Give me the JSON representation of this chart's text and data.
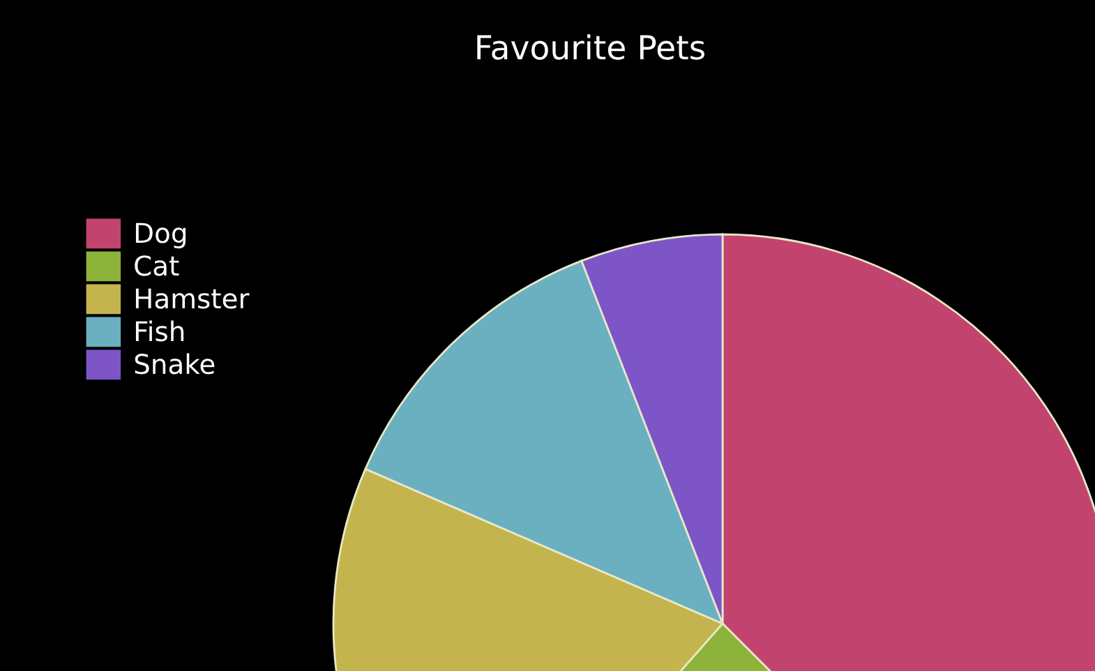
{
  "chart_data": {
    "type": "pie",
    "title": "Favourite Pets",
    "categories": [
      "Dog",
      "Cat",
      "Hamster",
      "Fish",
      "Snake"
    ],
    "values": [
      37.5,
      24,
      20,
      12.6,
      5.9
    ],
    "colors": [
      "#c2446e",
      "#8db33a",
      "#c4b44e",
      "#6ab0c0",
      "#7d55c7"
    ],
    "legend": "top left"
  }
}
